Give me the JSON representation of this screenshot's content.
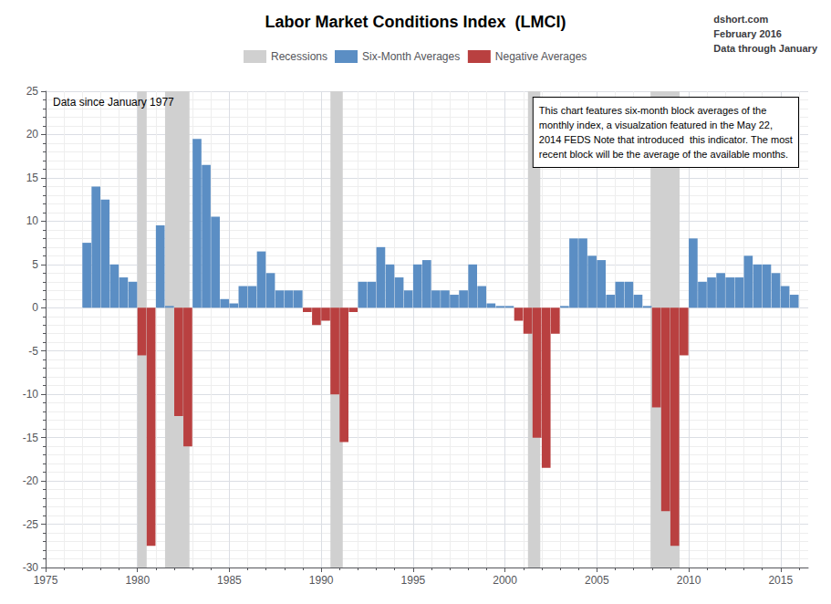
{
  "chart_data": {
    "type": "bar",
    "title": "Labor Market Conditions Index  (LMCI)",
    "subtitle": "dshort.com\nFebruary 2016\nData through January",
    "annotations": [
      "Data since January 1977",
      "This chart features six-month block averages of the\nmonthly index, a visualzation featured in the May 22,\n2014 FEDS Note that introduced  this indicator. The most\nrecent block will be the average of the available months."
    ],
    "x": [
      1977.0,
      1977.5,
      1978.0,
      1978.5,
      1979.0,
      1979.5,
      1980.0,
      1980.5,
      1981.0,
      1981.5,
      1982.0,
      1982.5,
      1983.0,
      1983.5,
      1984.0,
      1984.5,
      1985.0,
      1985.5,
      1986.0,
      1986.5,
      1987.0,
      1987.5,
      1988.0,
      1988.5,
      1989.0,
      1989.5,
      1990.0,
      1990.5,
      1991.0,
      1991.5,
      1992.0,
      1992.5,
      1993.0,
      1993.5,
      1994.0,
      1994.5,
      1995.0,
      1995.5,
      1996.0,
      1996.5,
      1997.0,
      1997.5,
      1998.0,
      1998.5,
      1999.0,
      1999.5,
      2000.0,
      2000.5,
      2001.0,
      2001.5,
      2002.0,
      2002.5,
      2003.0,
      2003.5,
      2004.0,
      2004.5,
      2005.0,
      2005.5,
      2006.0,
      2006.5,
      2007.0,
      2007.5,
      2008.0,
      2008.5,
      2009.0,
      2009.5,
      2010.0,
      2010.5,
      2011.0,
      2011.5,
      2012.0,
      2012.5,
      2013.0,
      2013.5,
      2014.0,
      2014.5,
      2015.0,
      2015.5
    ],
    "series": [
      {
        "name": "Six-Month Averages",
        "color": "#5b8ec4",
        "values": [
          7.5,
          14.0,
          12.5,
          5.0,
          3.5,
          3.0,
          null,
          null,
          9.5,
          0.2,
          null,
          null,
          19.5,
          16.5,
          10.5,
          1.0,
          0.5,
          2.5,
          2.5,
          6.5,
          4.0,
          2.0,
          2.0,
          2.0,
          null,
          null,
          null,
          null,
          null,
          null,
          3.0,
          3.0,
          7.0,
          5.0,
          3.5,
          2.0,
          5.0,
          5.5,
          2.0,
          2.0,
          1.5,
          2.0,
          5.0,
          2.5,
          0.5,
          0.2,
          0.2,
          null,
          null,
          null,
          null,
          null,
          0.2,
          8.0,
          8.0,
          6.0,
          5.5,
          1.5,
          3.0,
          3.0,
          1.5,
          0.2,
          null,
          null,
          null,
          null,
          8.0,
          3.0,
          3.5,
          4.0,
          3.5,
          3.5,
          6.0,
          5.0,
          5.0,
          4.0,
          2.5,
          1.5
        ]
      },
      {
        "name": "Negative Averages",
        "color": "#b94040",
        "values": [
          null,
          null,
          null,
          null,
          null,
          null,
          -5.5,
          -27.5,
          null,
          null,
          -12.5,
          -16.0,
          null,
          null,
          null,
          null,
          null,
          null,
          null,
          null,
          null,
          null,
          null,
          null,
          -0.5,
          -2.0,
          -1.5,
          -10.0,
          -15.5,
          -0.5,
          null,
          null,
          null,
          null,
          null,
          null,
          null,
          null,
          null,
          null,
          null,
          null,
          null,
          null,
          null,
          null,
          null,
          -1.5,
          -3.0,
          -15.0,
          -18.5,
          -3.0,
          null,
          null,
          null,
          null,
          null,
          null,
          null,
          null,
          null,
          null,
          -11.5,
          -23.5,
          -27.5,
          -5.5,
          null,
          null,
          null,
          null,
          null,
          null,
          null,
          null,
          null,
          null,
          null,
          null
        ]
      }
    ],
    "recessions": {
      "name": "Recessions",
      "color": "#d0d0d0",
      "spans": [
        [
          1980.0,
          1980.5
        ],
        [
          1981.5,
          1982.83
        ],
        [
          1990.5,
          1991.17
        ],
        [
          2001.25,
          2001.92
        ],
        [
          2007.92,
          2009.5
        ]
      ]
    },
    "xlim": [
      1975,
      2016.5
    ],
    "xticks": [
      1975,
      1980,
      1985,
      1990,
      1995,
      2000,
      2005,
      2010,
      2015
    ],
    "ylim": [
      -30,
      25
    ],
    "yticks": [
      -30,
      -25,
      -20,
      -15,
      -10,
      -5,
      0,
      5,
      10,
      15,
      20,
      25
    ],
    "grid": true,
    "legend": "top"
  }
}
